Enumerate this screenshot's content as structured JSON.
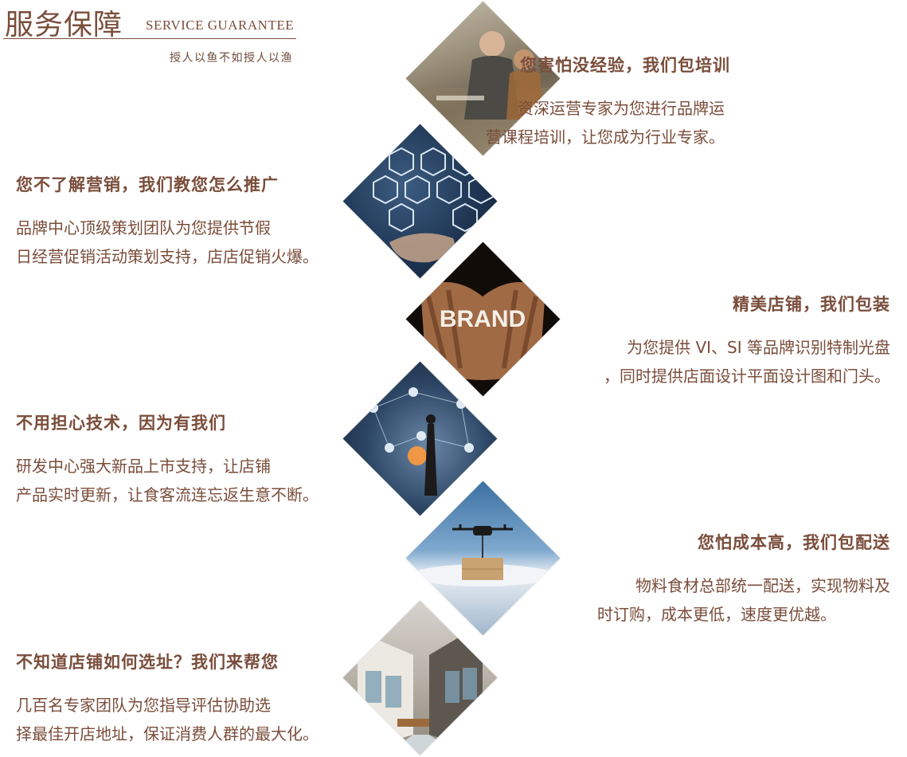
{
  "header": {
    "title_cn": "服务保障",
    "title_en": "SERVICE GUARANTEE",
    "subtitle": "授人以鱼不如授人以渔"
  },
  "items": [
    {
      "heading": "您害怕没经验，我们包培训",
      "lines": [
        "资深运营专家为您进行品牌运",
        "营课程培训，让您成为行业专家。"
      ],
      "align": "right",
      "image": "business-people-meeting"
    },
    {
      "heading": "您不了解营销，我们教您怎么推广",
      "lines": [
        "品牌中心顶级策划团队为您提供节假",
        "日经营促销活动策划支持，店店促销火爆。"
      ],
      "align": "left",
      "image": "digital-marketing-icons"
    },
    {
      "heading": "精美店铺，我们包装",
      "lines": [
        "为您提供 VI、SI 等品牌识别特制光盘",
        "，同时提供店面设计平面设计图和门头。"
      ],
      "align": "right",
      "image": "brand-hands",
      "image_text": "BRAND"
    },
    {
      "heading": "不用担心技术，因为有我们",
      "lines": [
        "研发中心强大新品上市支持，让店铺",
        "产品实时更新，让食客流连忘返生意不断。"
      ],
      "align": "left",
      "image": "technology-network"
    },
    {
      "heading": "您怕成本高，我们包配送",
      "lines": [
        "物料食材总部统一配送，实现物料及",
        "时订购，成本更低，速度更优越。"
      ],
      "align": "right",
      "image": "drone-delivery"
    },
    {
      "heading": "不知道店铺如何选址？我们来帮您",
      "lines": [
        "几百名专家团队为您指导评估协助选",
        "择最佳开店地址，保证消费人群的最大化。"
      ],
      "align": "left",
      "image": "shopping-street"
    }
  ]
}
